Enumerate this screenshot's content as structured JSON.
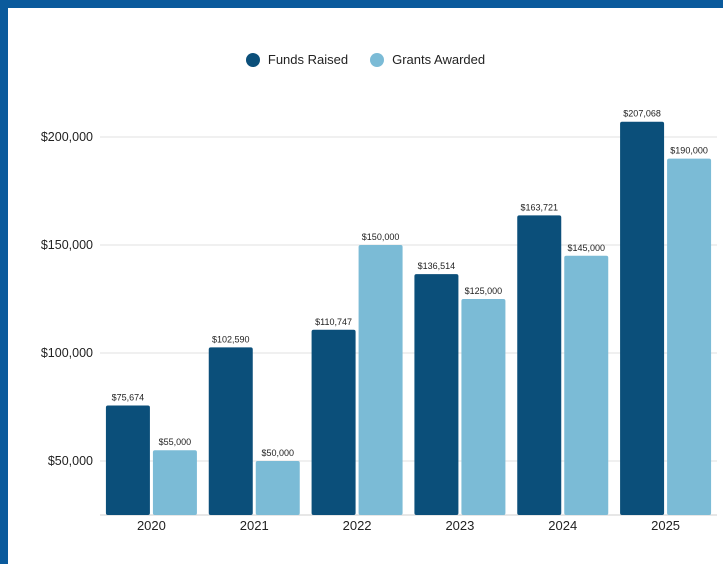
{
  "chart_data": {
    "type": "bar",
    "categories": [
      "2020",
      "2021",
      "2022",
      "2023",
      "2024",
      "2025"
    ],
    "series": [
      {
        "name": "Funds Raised",
        "color": "#0b4f7a",
        "values": [
          75674,
          102590,
          110747,
          136514,
          163721,
          207068
        ],
        "labels": [
          "$75,674",
          "$102,590",
          "$110,747",
          "$136,514",
          "$163,721",
          "$207,068"
        ]
      },
      {
        "name": "Grants Awarded",
        "color": "#7bbbd6",
        "values": [
          55000,
          50000,
          150000,
          125000,
          145000,
          190000
        ],
        "labels": [
          "$55,000",
          "$50,000",
          "$150,000",
          "$125,000",
          "$145,000",
          "$190,000"
        ]
      }
    ],
    "yticks": [
      50000,
      100000,
      150000,
      200000
    ],
    "ytick_labels": [
      "$50,000",
      "$100,000",
      "$150,000",
      "$200,000"
    ],
    "ylim": [
      25000,
      215000
    ],
    "grid": true,
    "legend_position": "top-center",
    "title": "",
    "xlabel": "",
    "ylabel": ""
  }
}
